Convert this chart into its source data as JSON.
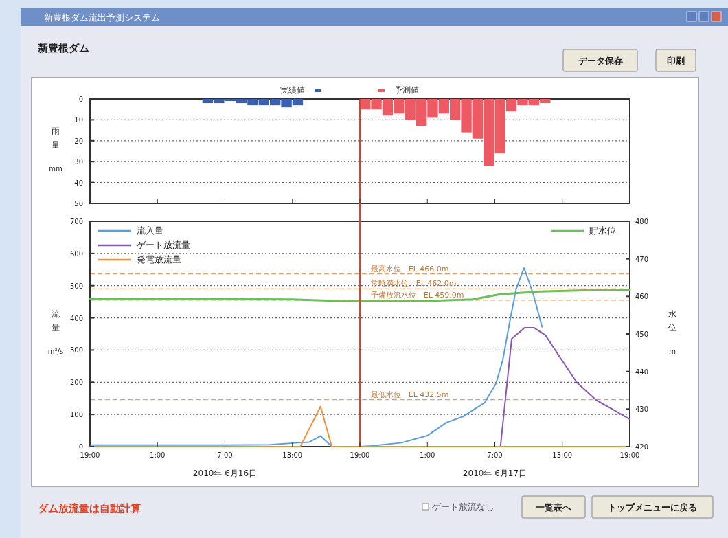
{
  "chart_data": [
    {
      "type": "bar",
      "title": "新豊根ダム",
      "ylabel": "雨量 mm",
      "xlim": [
        "2010-06-15T19:00",
        "2010-06-17T19:00"
      ],
      "xticks": [
        {
          "value": "2010-06-15T19:00",
          "label": null
        },
        {
          "value": "2010-06-16T01:00",
          "label": null
        },
        {
          "value": "2010-06-16T07:00",
          "label": null
        },
        {
          "value": "2010-06-16T13:00",
          "label": null
        },
        {
          "value": "2010-06-16T19:00",
          "label": null
        },
        {
          "value": "2010-06-17T01:00",
          "label": null
        },
        {
          "value": "2010-06-17T07:00",
          "label": null
        },
        {
          "value": "2010-06-17T13:00",
          "label": null
        },
        {
          "value": "2010-06-17T19:00",
          "label": null
        }
      ],
      "tick_labels": "y",
      "ylim": [
        50,
        0
      ],
      "yticks": [
        0,
        10,
        20,
        30,
        40,
        50
      ],
      "grid": "y",
      "legend": "top",
      "series": [
        {
          "name": "実績値",
          "color": "#3a5fb0",
          "x": [
            "2010-06-16T05:00",
            "2010-06-16T06:00",
            "2010-06-16T07:00",
            "2010-06-16T08:00",
            "2010-06-16T09:00",
            "2010-06-16T10:00",
            "2010-06-16T11:00",
            "2010-06-16T12:00",
            "2010-06-16T13:00"
          ],
          "values": [
            2,
            2,
            1,
            2,
            3,
            3,
            3,
            4,
            3
          ]
        },
        {
          "name": "予測値",
          "color": "#ee5a64",
          "x": [
            "2010-06-16T19:00",
            "2010-06-16T20:00",
            "2010-06-16T21:00",
            "2010-06-16T22:00",
            "2010-06-16T23:00",
            "2010-06-17T00:00",
            "2010-06-17T01:00",
            "2010-06-17T02:00",
            "2010-06-17T03:00",
            "2010-06-17T04:00",
            "2010-06-17T05:00",
            "2010-06-17T06:00",
            "2010-06-17T07:00",
            "2010-06-17T08:00",
            "2010-06-17T09:00",
            "2010-06-17T10:00",
            "2010-06-17T11:00"
          ],
          "values": [
            5,
            5,
            8,
            7,
            10,
            13,
            9,
            7,
            10,
            16,
            19,
            32,
            26,
            6,
            3,
            3,
            2
          ]
        }
      ],
      "ref_lines": [
        {
          "axis": "x",
          "value": "2010-06-16T19:00",
          "color": "#d2452a"
        }
      ],
      "annotations": [
        "新豊根ダム流出予測システム",
        "データ保存",
        "印刷",
        "ダム放流量は自動計算",
        "ゲート放流なし",
        "一覧表へ",
        "トップメニューに戻る"
      ]
    },
    {
      "type": "line",
      "ylabel": "流量 m³/s",
      "y2label": "水位 m",
      "xlim": [
        "2010-06-15T19:00",
        "2010-06-17T19:00"
      ],
      "xticks": [
        {
          "value": "2010-06-15T19:00",
          "label": "19:00"
        },
        {
          "value": "2010-06-16T01:00",
          "label": "1:00"
        },
        {
          "value": "2010-06-16T07:00",
          "label": "7:00"
        },
        {
          "value": "2010-06-16T13:00",
          "label": "13:00"
        },
        {
          "value": "2010-06-16T19:00",
          "label": "19:00"
        },
        {
          "value": "2010-06-17T01:00",
          "label": "1:00"
        },
        {
          "value": "2010-06-17T07:00",
          "label": "7:00"
        },
        {
          "value": "2010-06-17T13:00",
          "label": "13:00"
        },
        {
          "value": "2010-06-17T19:00",
          "label": "19:00"
        }
      ],
      "ylim": [
        0,
        700
      ],
      "yticks": [
        0,
        100,
        200,
        300,
        400,
        500,
        600,
        700
      ],
      "y2lim": [
        420,
        480
      ],
      "y2ticks": [
        420,
        430,
        440,
        450,
        460,
        470,
        480
      ],
      "grid": "y",
      "legend": "top left",
      "series": [
        {
          "name": "流入量",
          "color": "#5a9ee0",
          "x": [
            "2010-06-15T19:00",
            "2010-06-16T01:00",
            "2010-06-16T07:00",
            "2010-06-16T11:00",
            "2010-06-16T13:30",
            "2010-06-16T14:30",
            "2010-06-16T15:30",
            "2010-06-16T16:30",
            "2010-06-16T19:00",
            "2010-06-16T20:00",
            "2010-06-16T22:42",
            "2010-06-17T01:00",
            "2010-06-17T02:42",
            "2010-06-17T04:12",
            "2010-06-17T06:06",
            "2010-06-17T07:06",
            "2010-06-17T07:42",
            "2010-06-17T08:24",
            "2010-06-17T08:54",
            "2010-06-17T09:36",
            "2010-06-17T10:24",
            "2010-06-17T11:12"
          ],
          "values": [
            5,
            5,
            5,
            6,
            12,
            14,
            33,
            0,
            0,
            2,
            12,
            34,
            75,
            94,
            137,
            196,
            268,
            402,
            490,
            555,
            476,
            372
          ]
        },
        {
          "name": "ゲート放流量",
          "color": "#8a55b5",
          "x": [
            "2010-06-17T07:30",
            "2010-06-17T08:30",
            "2010-06-17T09:39",
            "2010-06-17T10:30",
            "2010-06-17T11:30",
            "2010-06-17T12:48",
            "2010-06-17T14:18",
            "2010-06-17T16:00",
            "2010-06-17T17:42",
            "2010-06-17T19:00"
          ],
          "values": [
            0,
            335,
            369,
            369,
            346,
            277,
            199,
            145,
            111,
            85
          ]
        },
        {
          "name": "発電放流量",
          "color": "#f0913a",
          "x": [
            "2010-06-15T19:00",
            "2010-06-16T13:42",
            "2010-06-16T15:30",
            "2010-06-16T16:30",
            "2010-06-17T19:00"
          ],
          "values": [
            0,
            0,
            125,
            0,
            0
          ]
        },
        {
          "name": "貯水位",
          "color": "#6cbf5a",
          "axis": "y2",
          "x": [
            "2010-06-15T19:00",
            "2010-06-16T07:00",
            "2010-06-16T13:00",
            "2010-06-16T17:00",
            "2010-06-17T01:00",
            "2010-06-17T05:00",
            "2010-06-17T07:24",
            "2010-06-17T11:00",
            "2010-06-17T15:00",
            "2010-06-17T19:00"
          ],
          "values": [
            459.3,
            459.3,
            459.2,
            458.8,
            458.8,
            459.2,
            460.5,
            461.3,
            461.6,
            461.7
          ]
        }
      ],
      "ref_lines": [
        {
          "axis": "x",
          "value": "2010-06-16T19:00",
          "color": "#d2452a"
        },
        {
          "axis": "y2",
          "value": 466,
          "label": "最高水位　EL 466.0m",
          "color": "#e0a070",
          "line_style": "dashed"
        },
        {
          "axis": "y2",
          "value": 462,
          "label": "常時満水位　EL 462.0m",
          "color": "#e0a070",
          "line_style": "dashed"
        },
        {
          "axis": "y2",
          "value": 459,
          "label": "予備放流水位　EL 459.0m",
          "color": "#e0a070",
          "line_style": "dashed"
        },
        {
          "axis": "y2",
          "value": 432.5,
          "label": "最低水位　EL 432.5m",
          "color": "#e0a070",
          "line_style": "dashed"
        }
      ],
      "annotations": [
        "2010年 6月16日",
        "2010年 6月17日"
      ]
    }
  ]
}
